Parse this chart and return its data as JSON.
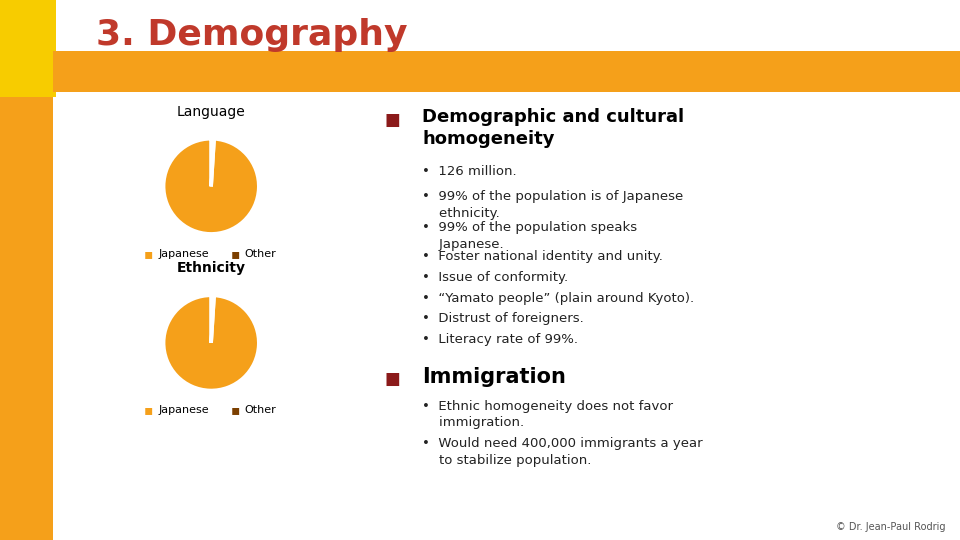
{
  "title": "3. Demography",
  "title_color": "#c0392b",
  "title_fontsize": 26,
  "orange_color": "#f5a01a",
  "sidebar_color": "#f5a01a",
  "header_bar_color": "#f5a01a",
  "bg_color": "#ffffff",
  "language_label": "Language",
  "ethnicity_label": "Ethnicity",
  "pie_japanese_pct": 99,
  "pie_other_pct": 1,
  "pie_color_japanese": "#f5a01a",
  "pie_color_other": "#7b3f00",
  "legend_japanese": "Japanese",
  "legend_other": "Other",
  "bullet_color": "#8b1a1a",
  "bullet1_title": "Demographic and cultural\nhomogeneity",
  "bullet1_points": [
    "126 million.",
    "99% of the population is of Japanese\n    ethnicity.",
    "99% of the population speaks\n    Japanese.",
    "Foster national identity and unity.",
    "Issue of conformity.",
    "“Yamato people” (plain around Kyoto).",
    "Distrust of foreigners.",
    "Literacy rate of 99%."
  ],
  "bullet2_title": "Immigration",
  "bullet2_points": [
    "Ethnic homogeneity does not favor\n    immigration.",
    "Would need 400,000 immigrants a year\n    to stabilize population."
  ],
  "footer_text": "© Dr. Jean-Paul Rodrig"
}
